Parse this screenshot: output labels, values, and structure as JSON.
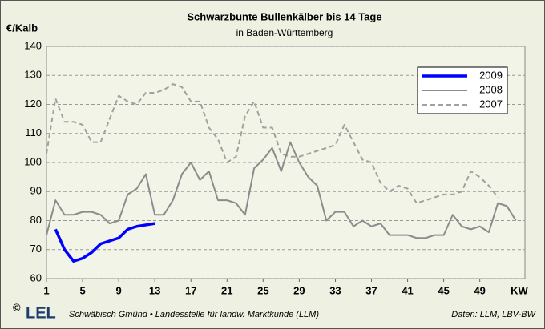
{
  "chart_data": {
    "type": "line",
    "title": "Schwarzbunte Bullenkälber bis 14 Tage",
    "subtitle": "in Baden-Württemberg",
    "y_label": "€/Kalb",
    "x_label": "KW",
    "x": [
      1,
      2,
      3,
      4,
      5,
      6,
      7,
      8,
      9,
      10,
      11,
      12,
      13,
      14,
      15,
      16,
      17,
      18,
      19,
      20,
      21,
      22,
      23,
      24,
      25,
      26,
      27,
      28,
      29,
      30,
      31,
      32,
      33,
      34,
      35,
      36,
      37,
      38,
      39,
      40,
      41,
      42,
      43,
      44,
      45,
      46,
      47,
      48,
      49,
      50,
      51,
      52,
      53
    ],
    "series": [
      {
        "name": "2009",
        "color": "#0000ff",
        "style": "solid",
        "width": 3.5,
        "values": [
          null,
          77,
          70,
          66,
          67,
          69,
          72,
          73,
          74,
          77,
          78,
          78.5,
          79,
          null,
          null,
          null,
          null,
          null,
          null,
          null,
          null,
          null,
          null,
          null,
          null,
          null,
          null,
          null,
          null,
          null,
          null,
          null,
          null,
          null,
          null,
          null,
          null,
          null,
          null,
          null,
          null,
          null,
          null,
          null,
          null,
          null,
          null,
          null,
          null,
          null,
          null,
          null,
          null
        ]
      },
      {
        "name": "2008",
        "color": "#8c8c8c",
        "style": "solid",
        "width": 2,
        "values": [
          75,
          87,
          82,
          82,
          83,
          83,
          82,
          79,
          80,
          89,
          91,
          96,
          82,
          82,
          87,
          96,
          100,
          94,
          97,
          87,
          87,
          86,
          82,
          98,
          101,
          105,
          97,
          107,
          100,
          95,
          92,
          80,
          83,
          83,
          78,
          80,
          78,
          79,
          75,
          75,
          75,
          74,
          74,
          75,
          75,
          82,
          78,
          77,
          78,
          76,
          86,
          85,
          80
        ]
      },
      {
        "name": "2007",
        "color": "#a0a0a0",
        "style": "dashed",
        "width": 2,
        "values": [
          103,
          122,
          114,
          114,
          113,
          107,
          107,
          115,
          123,
          121,
          120,
          124,
          124,
          125,
          127,
          126,
          121,
          121,
          112,
          108,
          100,
          102,
          116,
          121,
          112,
          112,
          103,
          102,
          102,
          103,
          104,
          105,
          106,
          113,
          107,
          101,
          100,
          93,
          90,
          92,
          91,
          86,
          87,
          88,
          89,
          89,
          90,
          97,
          95,
          92,
          88,
          null,
          null
        ]
      }
    ],
    "xlim": [
      1,
      54
    ],
    "xticks": [
      1,
      5,
      9,
      13,
      17,
      21,
      25,
      29,
      33,
      37,
      41,
      45,
      49
    ],
    "ylim": [
      60,
      140
    ],
    "yticks": [
      60,
      70,
      80,
      90,
      100,
      110,
      120,
      130,
      140
    ],
    "grid": true,
    "legend": "upper right",
    "footer": {
      "copyright": "©",
      "logo": "LEL",
      "source": "Schwäbisch Gmünd • Landesstelle für landw. Marktkunde (LLM)",
      "data": "Daten: LLM, LBV-BW"
    }
  }
}
